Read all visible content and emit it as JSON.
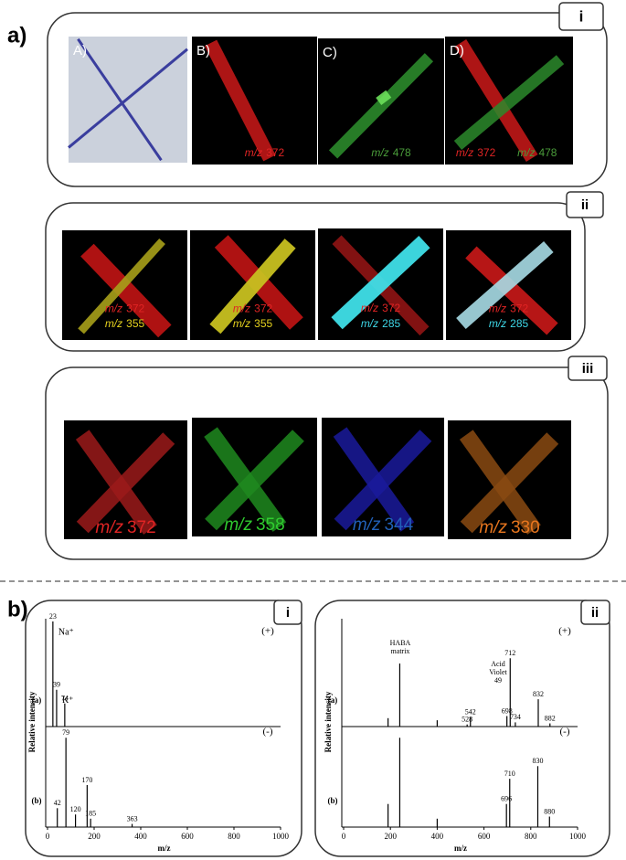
{
  "panel_a": {
    "label": "a)",
    "boxes": [
      {
        "tab": "i",
        "tiles": [
          {
            "letter": "A)"
          },
          {
            "letter": "B)",
            "labels": [
              {
                "prefix": "m/z",
                "mz": 372,
                "color": "#e02424"
              }
            ]
          },
          {
            "letter": "C)",
            "labels": [
              {
                "prefix": "m/z",
                "mz": 478,
                "color": "#4a9c3a"
              }
            ]
          },
          {
            "letter": "D)",
            "labels": [
              {
                "prefix": "m/z",
                "mz": 372,
                "color": "#e02424"
              },
              {
                "prefix": "m/z",
                "mz": 478,
                "color": "#4a9c3a"
              }
            ]
          }
        ]
      },
      {
        "tab": "ii",
        "tiles": [
          {
            "labels": [
              {
                "prefix": "m/z",
                "mz": 372,
                "color": "#e02424"
              },
              {
                "prefix": "m/z",
                "mz": 355,
                "color": "#e6d21e"
              }
            ]
          },
          {
            "labels": [
              {
                "prefix": "m/z",
                "mz": 372,
                "color": "#e02424"
              },
              {
                "prefix": "m/z",
                "mz": 355,
                "color": "#e6d21e"
              }
            ]
          },
          {
            "labels": [
              {
                "prefix": "m/z",
                "mz": 372,
                "color": "#e02424"
              },
              {
                "prefix": "m/z",
                "mz": 285,
                "color": "#3ed6e6"
              }
            ]
          },
          {
            "labels": [
              {
                "prefix": "m/z",
                "mz": 372,
                "color": "#e02424"
              },
              {
                "prefix": "m/z",
                "mz": 285,
                "color": "#3ed6e6"
              }
            ]
          }
        ]
      },
      {
        "tab": "iii",
        "tiles": [
          {
            "labels": [
              {
                "prefix": "m/z",
                "mz": 372,
                "color": "#e02424"
              }
            ]
          },
          {
            "labels": [
              {
                "prefix": "m/z",
                "mz": 358,
                "color": "#2fcc2f"
              }
            ]
          },
          {
            "labels": [
              {
                "prefix": "m/z",
                "mz": 344,
                "color": "#2160b8"
              }
            ]
          },
          {
            "labels": [
              {
                "prefix": "m/z",
                "mz": 330,
                "color": "#e8761e"
              }
            ]
          }
        ]
      }
    ]
  },
  "panel_b": {
    "label": "b)",
    "spectra": [
      {
        "tab": "i",
        "y_label": "Relative intensity",
        "x_label": "m/z",
        "xticks": [
          0,
          200,
          400,
          600,
          800,
          1000
        ],
        "traces": [
          {
            "label": "(a)",
            "mode": "(+)",
            "peaks": [
              {
                "mz": 23,
                "intensity": 100,
                "ion": "Na⁺"
              },
              {
                "mz": 39,
                "intensity": 35,
                "ion": "K⁺"
              },
              {
                "mz": 74,
                "intensity": 22
              }
            ]
          },
          {
            "label": "(b)",
            "mode": "(-)",
            "peaks": [
              {
                "mz": 42,
                "intensity": 18
              },
              {
                "mz": 79,
                "intensity": 85
              },
              {
                "mz": 120,
                "intensity": 12
              },
              {
                "mz": 170,
                "intensity": 40
              },
              {
                "mz": 185,
                "intensity": 8
              },
              {
                "mz": 363,
                "intensity": 3
              }
            ]
          }
        ]
      },
      {
        "tab": "ii",
        "y_label": "Relative intensity",
        "x_label": "m/z",
        "xticks": [
          0,
          200,
          400,
          600,
          800,
          1000
        ],
        "traces": [
          {
            "label": "(a)",
            "mode": "(+)",
            "annotations": [
              [
                "HABA",
                "matrix"
              ],
              [
                "Acid",
                "Violet",
                "49"
              ]
            ],
            "unlabeled_peaks": [
              {
                "mz": 190,
                "intensity": 8
              },
              {
                "mz": 240,
                "intensity": 60
              },
              {
                "mz": 400,
                "intensity": 6
              }
            ],
            "peaks": [
              {
                "mz": 528,
                "intensity": 2
              },
              {
                "mz": 542,
                "intensity": 9
              },
              {
                "mz": 698,
                "intensity": 10
              },
              {
                "mz": 712,
                "intensity": 65
              },
              {
                "mz": 734,
                "intensity": 4
              },
              {
                "mz": 832,
                "intensity": 26
              },
              {
                "mz": 882,
                "intensity": 3
              }
            ]
          },
          {
            "label": "(b)",
            "mode": "(-)",
            "unlabeled_peaks": [
              {
                "mz": 190,
                "intensity": 22
              },
              {
                "mz": 240,
                "intensity": 85
              },
              {
                "mz": 400,
                "intensity": 8
              }
            ],
            "peaks": [
              {
                "mz": 696,
                "intensity": 22
              },
              {
                "mz": 710,
                "intensity": 46
              },
              {
                "mz": 830,
                "intensity": 58
              },
              {
                "mz": 880,
                "intensity": 10
              }
            ]
          }
        ]
      }
    ]
  }
}
